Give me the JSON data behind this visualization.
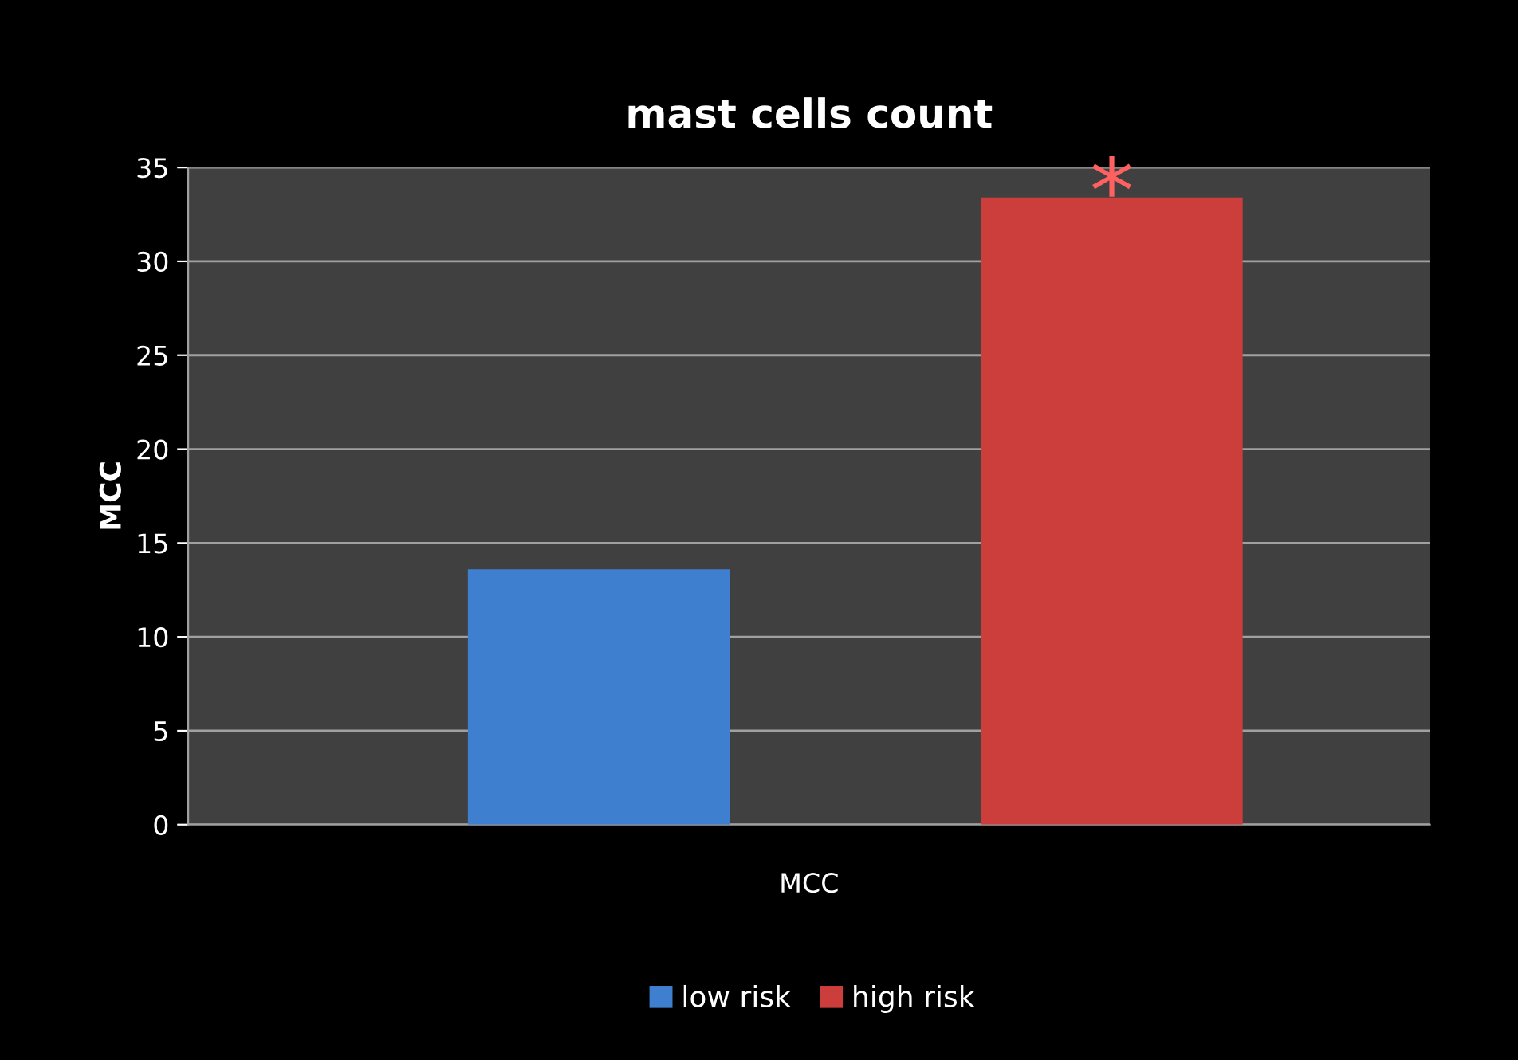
{
  "chart_data": {
    "type": "bar",
    "title": "mast cells count",
    "xlabel": "MCC",
    "ylabel": "MCC",
    "categories": [
      null,
      null
    ],
    "series": [
      {
        "name": "low risk",
        "color": "#3f7fd0",
        "values": [
          13.6,
          null
        ]
      },
      {
        "name": "high risk",
        "color": "#cc3e3b",
        "values": [
          null,
          33.4
        ]
      }
    ],
    "ylim": [
      0,
      35
    ],
    "yticks": [
      0,
      5,
      10,
      15,
      20,
      25,
      30,
      35
    ],
    "grid": "y",
    "legend": "bottom",
    "annotations": [
      "*"
    ]
  }
}
